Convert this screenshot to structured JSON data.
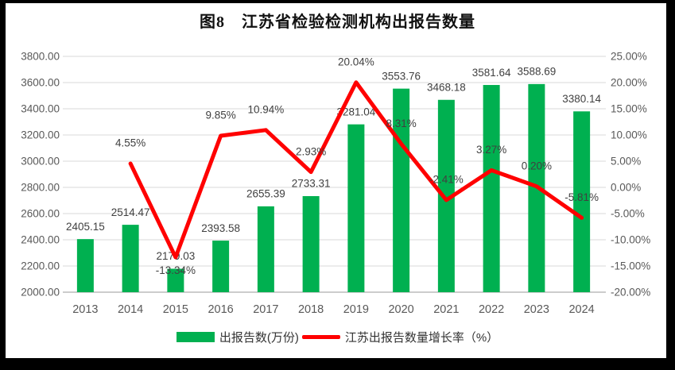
{
  "frame": {
    "background": "#000000",
    "canvas_background": "#ffffff"
  },
  "chart_data": {
    "type": "bar+line",
    "title": "图8　江苏省检验检测机构出报告数量",
    "categories": [
      "2013",
      "2014",
      "2015",
      "2016",
      "2017",
      "2018",
      "2019",
      "2020",
      "2021",
      "2022",
      "2023",
      "2024"
    ],
    "series": [
      {
        "name": "出报告数(万份)",
        "type": "bar",
        "axis": "left",
        "color": "#00B050",
        "values": [
          2405.15,
          2514.47,
          2179.03,
          2393.58,
          2655.39,
          2733.31,
          3281.04,
          3553.76,
          3468.18,
          3581.64,
          3588.69,
          3380.14
        ]
      },
      {
        "name": "江苏出报告数量增长率（%）",
        "type": "line",
        "axis": "right",
        "color": "#FF0000",
        "values": [
          null,
          4.55,
          -13.34,
          9.85,
          10.94,
          2.93,
          20.04,
          8.31,
          -2.41,
          3.27,
          0.2,
          -5.81
        ],
        "label_position": [
          "none",
          "above",
          "below",
          "above",
          "above",
          "above",
          "above",
          "above",
          "above",
          "above",
          "above",
          "above"
        ]
      }
    ],
    "left_axis": {
      "min": 2000,
      "max": 3800,
      "step": 200,
      "tick_labels": [
        "2000.00",
        "2200.00",
        "2400.00",
        "2600.00",
        "2800.00",
        "3000.00",
        "3200.00",
        "3400.00",
        "3600.00",
        "3800.00"
      ]
    },
    "right_axis": {
      "min": -20,
      "max": 25,
      "step": 5,
      "tick_labels": [
        "-20.00%",
        "-15.00%",
        "-10.00%",
        "-5.00%",
        "0.00%",
        "5.00%",
        "10.00%",
        "15.00%",
        "20.00%",
        "25.00%"
      ]
    },
    "grid": true,
    "legend_position": "bottom",
    "colors": {
      "gridline": "#D9D9D9",
      "axis_line": "#CCCCCC",
      "tick_text": "#595959",
      "data_label_text": "#404040"
    }
  }
}
